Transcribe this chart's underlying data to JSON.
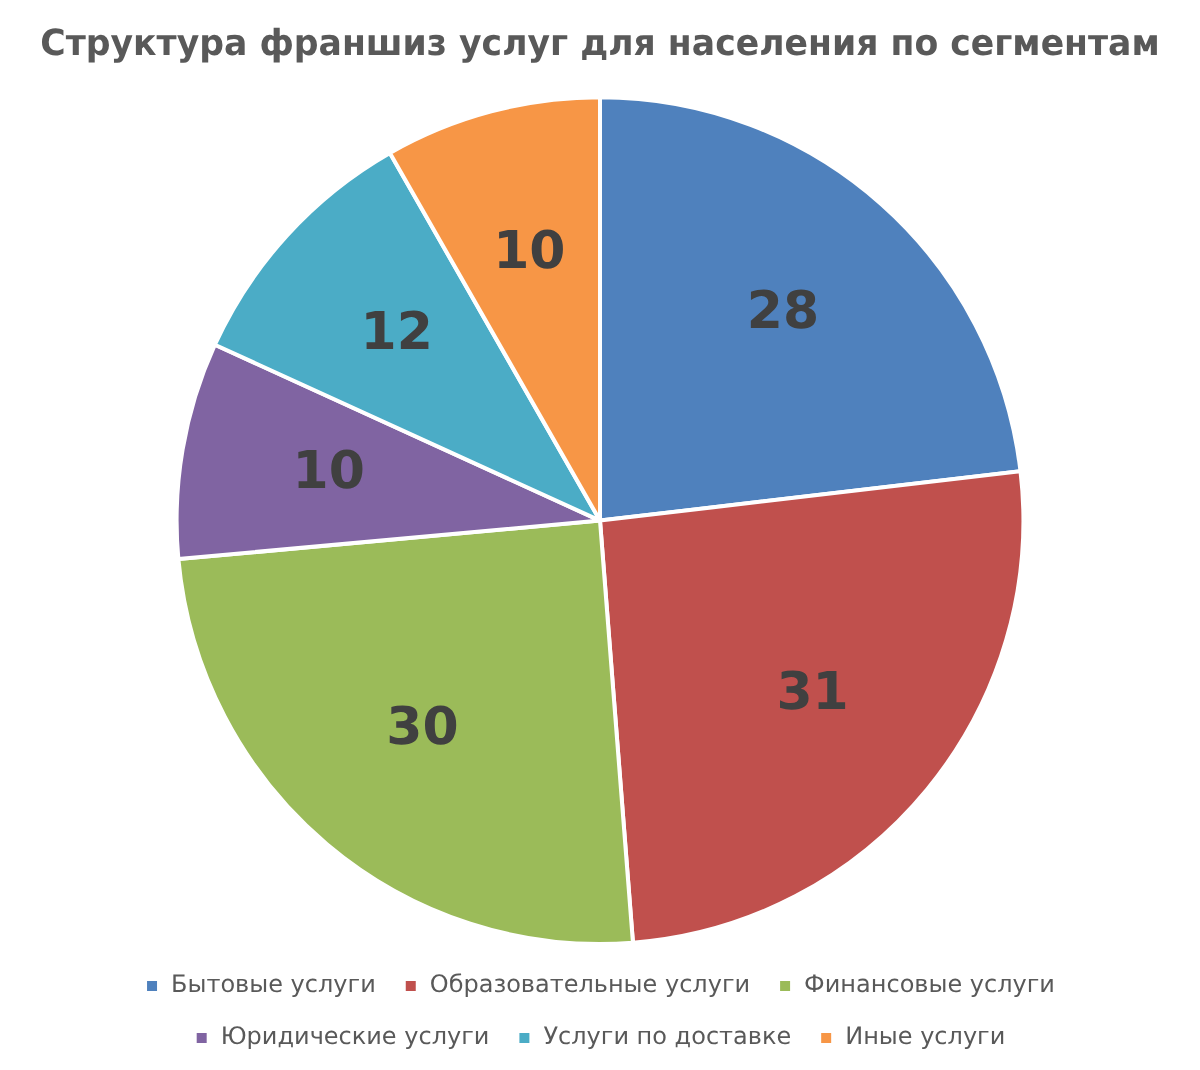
{
  "chart_data": {
    "type": "pie",
    "title": "Структура франшиз услуг для населения по сегментам",
    "categories": [
      "Бытовые услуги",
      "Образовательные услуги",
      "Финансовые услуги",
      "Юридические услуги",
      "Услуги по доставке",
      "Иные услуги"
    ],
    "values": [
      28,
      31,
      30,
      10,
      12,
      10
    ],
    "colors": [
      "#4f81bd",
      "#c0504d",
      "#9bbb59",
      "#8064a2",
      "#4bacc6",
      "#f79646"
    ],
    "data_labels": true,
    "legend": "bottom"
  }
}
